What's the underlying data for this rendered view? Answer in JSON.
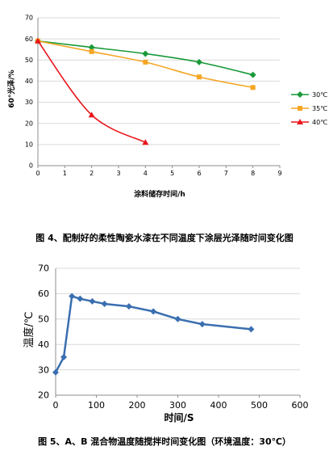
{
  "chart_data": [
    {
      "type": "line",
      "caption": "图 4、配制好的柔性陶瓷水漆在不同温度下涂层光泽随时间变化图",
      "xlabel": "涂料储存时间/h",
      "ylabel": "60°光泽/%",
      "xlim": [
        0,
        9
      ],
      "ylim": [
        0,
        70
      ],
      "xticks": [
        0,
        1,
        2,
        3,
        4,
        5,
        6,
        7,
        8,
        9
      ],
      "yticks": [
        0,
        10,
        20,
        30,
        40,
        50,
        60,
        70
      ],
      "grid": "horizontal",
      "legend_position": "right",
      "series": [
        {
          "name": "30℃",
          "color": "#1a9a3a",
          "marker": "diamond",
          "x": [
            0,
            2,
            4,
            6,
            8
          ],
          "y": [
            59,
            56,
            53,
            49,
            43
          ]
        },
        {
          "name": "35℃",
          "color": "#f5a623",
          "marker": "square",
          "x": [
            0,
            2,
            4,
            6,
            8
          ],
          "y": [
            59,
            54,
            49,
            42,
            37
          ]
        },
        {
          "name": "40℃",
          "color": "#e8161b",
          "marker": "triangle",
          "x": [
            0,
            2,
            4
          ],
          "y": [
            59,
            24,
            11
          ]
        }
      ]
    },
    {
      "type": "line",
      "caption": "图 5、A、B 混合物温度随搅拌时间变化图（环境温度：30℃）",
      "xlabel": "时间/S",
      "ylabel": "温度/℃",
      "xlim": [
        0,
        600
      ],
      "ylim": [
        20,
        70
      ],
      "xticks": [
        0,
        100,
        200,
        300,
        400,
        500,
        600
      ],
      "yticks": [
        20,
        30,
        40,
        50,
        60,
        70
      ],
      "grid": "horizontal",
      "series": [
        {
          "color": "#3a6fb0",
          "marker": "diamond",
          "x": [
            0,
            20,
            40,
            60,
            90,
            120,
            180,
            240,
            300,
            360,
            480
          ],
          "y": [
            29,
            35,
            59,
            58,
            57,
            56,
            55,
            53,
            50,
            48,
            46
          ]
        }
      ]
    }
  ]
}
